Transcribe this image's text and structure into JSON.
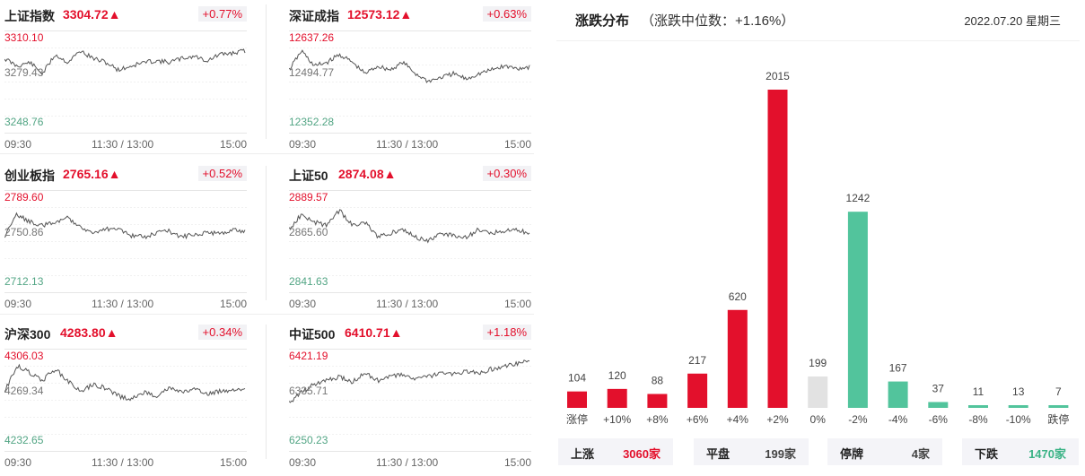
{
  "colors": {
    "up": "#e3102c",
    "down": "#52c49c",
    "flat": "#e2e2e2",
    "line": "#555555"
  },
  "time_axis": {
    "start": "09:30",
    "mid": "11:30 / 13:00",
    "end": "15:00"
  },
  "indices": [
    {
      "name": "上证指数",
      "price": "3304.72▲",
      "change": "+0.77%",
      "high": "3310.10",
      "base": "3279.43",
      "low": "3248.76"
    },
    {
      "name": "深证成指",
      "price": "12573.12▲",
      "change": "+0.63%",
      "high": "12637.26",
      "base": "12494.77",
      "low": "12352.28"
    },
    {
      "name": "创业板指",
      "price": "2765.16▲",
      "change": "+0.52%",
      "high": "2789.60",
      "base": "2750.86",
      "low": "2712.13"
    },
    {
      "name": "上证50",
      "price": "2874.08▲",
      "change": "+0.30%",
      "high": "2889.57",
      "base": "2865.60",
      "low": "2841.63"
    },
    {
      "name": "沪深300",
      "price": "4283.80▲",
      "change": "+0.34%",
      "high": "4306.03",
      "base": "4269.34",
      "low": "4232.65"
    },
    {
      "name": "中证500",
      "price": "6410.71▲",
      "change": "+1.18%",
      "high": "6421.19",
      "base": "6335.71",
      "low": "6250.23"
    }
  ],
  "distribution": {
    "title": "涨跌分布",
    "subtitle": "（涨跌中位数：+1.16%）",
    "date": "2022.07.20 星期三"
  },
  "chart_data": {
    "type": "bar",
    "title": "涨跌分布",
    "categories": [
      "涨停",
      "+10%",
      "+8%",
      "+6%",
      "+4%",
      "+2%",
      "0%",
      "-2%",
      "-4%",
      "-6%",
      "-8%",
      "-10%",
      "跌停"
    ],
    "values": [
      104,
      120,
      88,
      217,
      620,
      2015,
      199,
      1242,
      167,
      37,
      11,
      13,
      7
    ],
    "bar_colors": [
      "#e3102c",
      "#e3102c",
      "#e3102c",
      "#e3102c",
      "#e3102c",
      "#e3102c",
      "#e2e2e2",
      "#52c49c",
      "#52c49c",
      "#52c49c",
      "#52c49c",
      "#52c49c",
      "#52c49c"
    ],
    "ylim": [
      0,
      2015
    ]
  },
  "summary": [
    {
      "label": "上涨",
      "value": "3060家",
      "tone": "up"
    },
    {
      "label": "平盘",
      "value": "199家",
      "tone": "flat"
    },
    {
      "label": "停牌",
      "value": "4家",
      "tone": "flat"
    },
    {
      "label": "下跌",
      "value": "1470家",
      "tone": "down"
    }
  ]
}
